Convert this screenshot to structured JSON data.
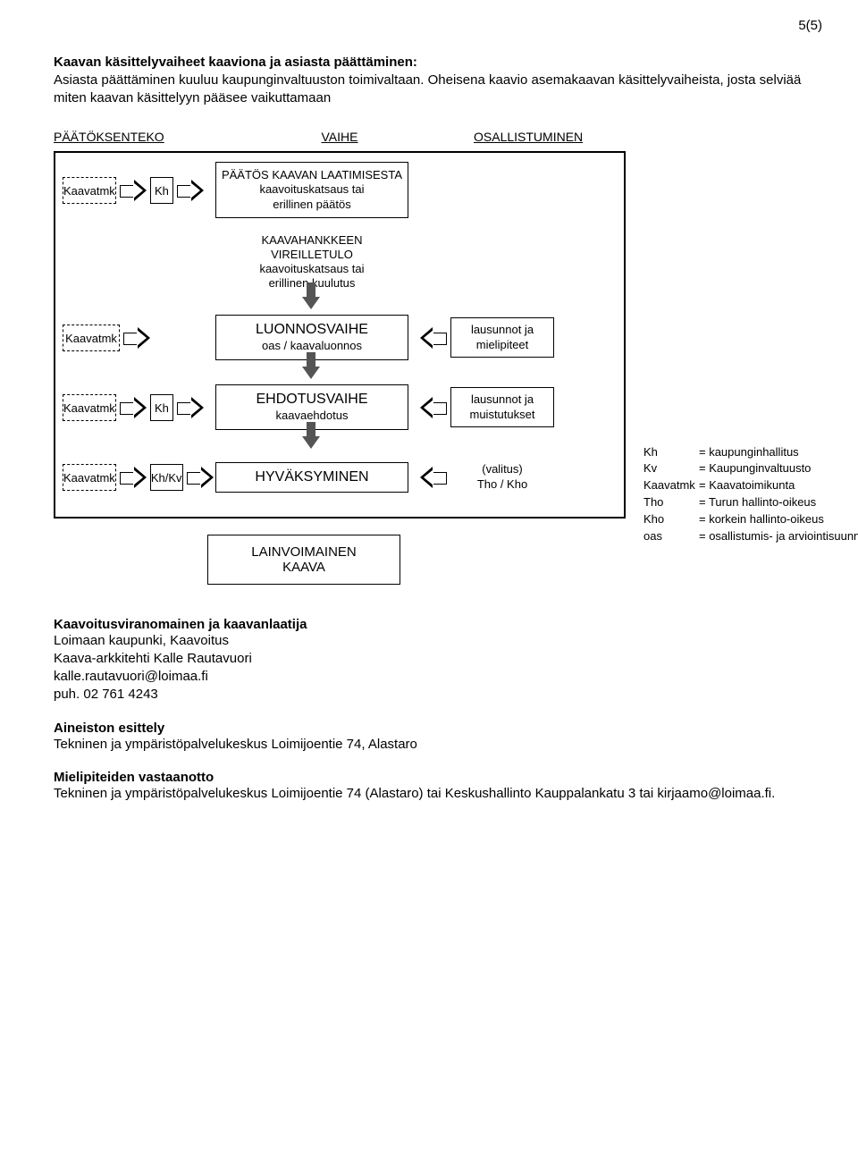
{
  "pageNumber": "5(5)",
  "intro": {
    "heading": "Kaavan käsittelyvaiheet kaaviona ja asiasta päättäminen:",
    "body": "Asiasta päättäminen kuuluu kaupunginvaltuuston toimivaltaan. Oheisena kaavio asemakaavan käsittelyvaiheista, josta selviää miten kaavan käsittelyyn pääsee vaikuttamaan"
  },
  "diagram": {
    "columns": {
      "c1": "PÄÄTÖKSENTEKO",
      "c2": "VAIHE",
      "c3": "OSALLISTUMINEN"
    },
    "rows": [
      {
        "decision": {
          "a": "Kaavatmk",
          "a_dashed": true,
          "b": "Kh",
          "b_dashed": false
        },
        "stage": {
          "title": "PÄÄTÖS KAAVAN LAATIMISESTA",
          "sub": "kaavoituskatsaus tai\nerillinen päätös",
          "bordered": true,
          "title_bold": false
        },
        "part": null,
        "arrow_down": false
      },
      {
        "decision": null,
        "stage": {
          "title": "KAAVAHANKKEEN VIREILLETULO",
          "sub": "kaavoituskatsaus tai\nerillinen kuulutus",
          "bordered": false,
          "title_bold": false
        },
        "part": null,
        "arrow_down": true
      },
      {
        "decision": {
          "a": "Kaavatmk",
          "a_dashed": true,
          "b": null
        },
        "stage": {
          "title": "LUONNOSVAIHE",
          "sub": "oas / kaavaluonnos",
          "bordered": true,
          "title_bold": true
        },
        "part": {
          "line1": "lausunnot ja",
          "line2": "mielipiteet",
          "bordered": true
        },
        "arrow_down": true
      },
      {
        "decision": {
          "a": "Kaavatmk",
          "a_dashed": true,
          "b": "Kh",
          "b_dashed": false
        },
        "stage": {
          "title": "EHDOTUSVAIHE",
          "sub": "kaavaehdotus",
          "bordered": true,
          "title_bold": true
        },
        "part": {
          "line1": "lausunnot ja",
          "line2": "muistutukset",
          "bordered": true
        },
        "arrow_down": true
      },
      {
        "decision": {
          "a": "Kaavatmk",
          "a_dashed": true,
          "b": "Kh/Kv",
          "b_dashed": false
        },
        "stage": {
          "title": "HYVÄKSYMINEN",
          "sub": "",
          "bordered": true,
          "title_bold": true
        },
        "part": {
          "line1": "(valitus)",
          "line2": "Tho / Kho",
          "bordered": false
        },
        "arrow_down": false
      }
    ],
    "final": {
      "title": "LAINVOIMAINEN",
      "sub": "KAAVA"
    }
  },
  "legend": [
    {
      "key": "Kh",
      "val": "= kaupunginhallitus"
    },
    {
      "key": "Kv",
      "val": "= Kaupunginvaltuusto"
    },
    {
      "key": "Kaavatmk",
      "val": "= Kaavatoimikunta"
    },
    {
      "key": "Tho",
      "val": "= Turun hallinto-oikeus"
    },
    {
      "key": "Kho",
      "val": "= korkein hallinto-oikeus"
    },
    {
      "key": "oas",
      "val": "= osallistumis- ja arviointisuunnitelma"
    }
  ],
  "sections": {
    "s1": {
      "title": "Kaavoitusviranomainen ja kaavanlaatija",
      "lines": [
        "Loimaan kaupunki, Kaavoitus",
        "Kaava-arkkitehti Kalle Rautavuori",
        "kalle.rautavuori@loimaa.fi",
        "puh. 02 761 4243"
      ]
    },
    "s2": {
      "title": "Aineiston esittely",
      "lines": [
        "Tekninen ja ympäristöpalvelukeskus Loimijoentie 74, Alastaro"
      ]
    },
    "s3": {
      "title": "Mielipiteiden vastaanotto",
      "lines": [
        "Tekninen ja ympäristöpalvelukeskus Loimijoentie 74 (Alastaro) tai Keskushallinto Kauppalankatu 3 tai kirjaamo@loimaa.fi."
      ]
    }
  }
}
